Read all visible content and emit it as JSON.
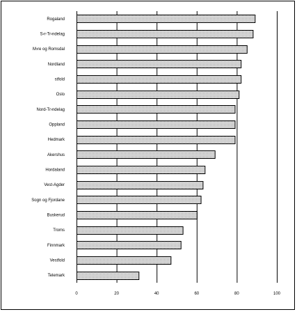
{
  "chart_data": {
    "type": "bar",
    "orientation": "horizontal",
    "categories": [
      "Rogaland",
      "S›r-Tr›ndelag",
      "M›re og Romsdal",
      "Nordland",
      "stfold",
      "Oslo",
      "Nord-Tr›ndelag",
      "Oppland",
      "Hedmark",
      "Akershus",
      "Hordaland",
      "Vest-Agder",
      "Sogn og Fjordane",
      "Buskerud",
      "Troms",
      "Finnmark",
      "Vestfold",
      "Telemark"
    ],
    "values": [
      89,
      88,
      85,
      82,
      82,
      81,
      79,
      79,
      79,
      69,
      64,
      63,
      62,
      60,
      53,
      52,
      47,
      31
    ],
    "xlim": [
      0,
      100
    ],
    "xticks": [
      "0",
      "20",
      "40",
      "60",
      "80",
      "100"
    ],
    "grid": true,
    "bar_fill": "#d8d8d8",
    "bar_pattern": "dotted"
  }
}
